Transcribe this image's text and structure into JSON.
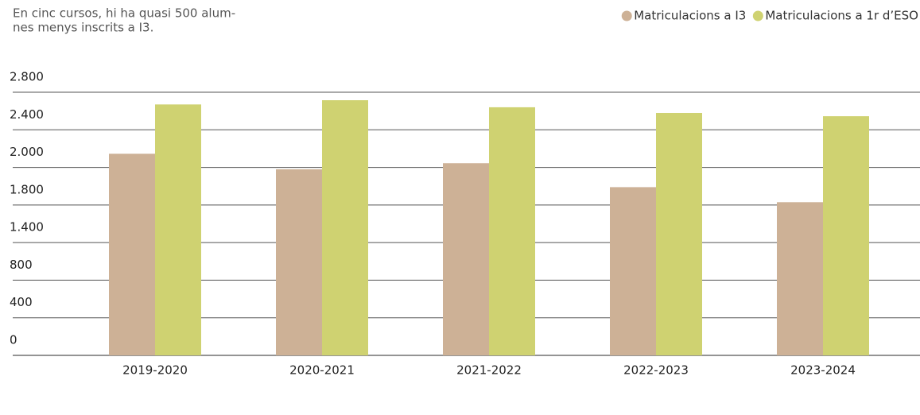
{
  "chart_data": {
    "type": "bar",
    "subtitle_lines": [
      "En cinc cursos, hi ha quasi 500 alum-",
      "nes menys inscrits a I3."
    ],
    "categories": [
      "2019-2020",
      "2020-2021",
      "2021-2022",
      "2022-2023",
      "2023-2024"
    ],
    "series": [
      {
        "name": "Matriculacions a I3",
        "color": "#cdb196",
        "values": [
          2145,
          1990,
          2045,
          1895,
          1815
        ]
      },
      {
        "name": "Matriculacions a 1r d’ESO",
        "color": "#cfd271",
        "values": [
          2670,
          2715,
          2640,
          2580,
          2545
        ]
      }
    ],
    "ylim": [
      0,
      2800
    ],
    "yticks": [
      0,
      400,
      800,
      {
        "value": 1400,
        "label": "1.400"
      },
      {
        "value": 1800,
        "label": "1.800"
      },
      {
        "value": 2000,
        "label": "2.000"
      },
      {
        "value": 2400,
        "label": "2.400"
      },
      {
        "value": 2800,
        "label": "2.800"
      }
    ],
    "grid": true,
    "legend": "top-right"
  }
}
